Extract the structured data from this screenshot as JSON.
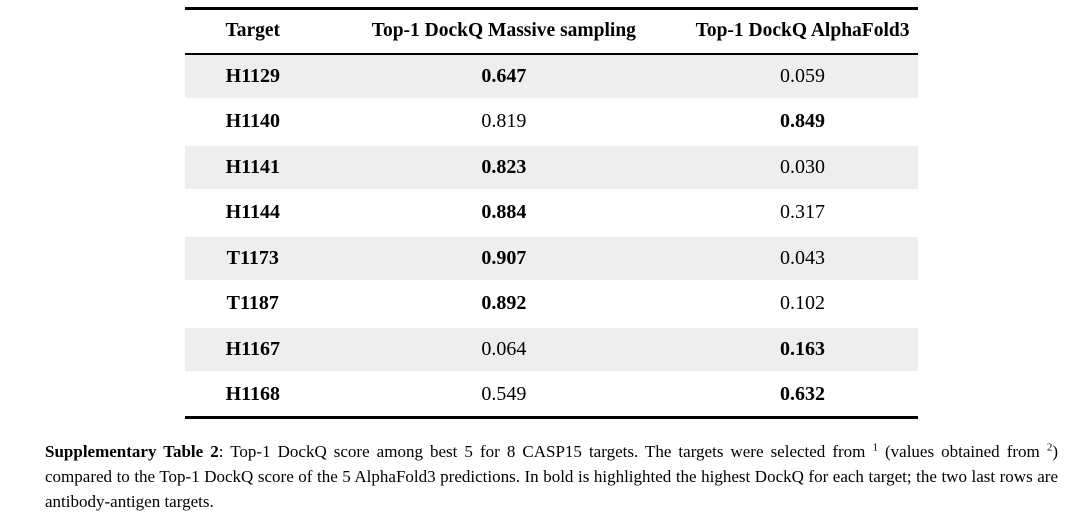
{
  "table": {
    "columns": [
      {
        "label": "Target"
      },
      {
        "label": "Top-1 DockQ Massive sampling"
      },
      {
        "label": "Top-1 DockQ AlphaFold3"
      }
    ],
    "rows": [
      {
        "target": "H1129",
        "massive": "0.647",
        "af3": "0.059",
        "best": "massive"
      },
      {
        "target": "H1140",
        "massive": "0.819",
        "af3": "0.849",
        "best": "af3"
      },
      {
        "target": "H1141",
        "massive": "0.823",
        "af3": "0.030",
        "best": "massive"
      },
      {
        "target": "H1144",
        "massive": "0.884",
        "af3": "0.317",
        "best": "massive"
      },
      {
        "target": "T1173",
        "massive": "0.907",
        "af3": "0.043",
        "best": "massive"
      },
      {
        "target": "T1187",
        "massive": "0.892",
        "af3": "0.102",
        "best": "massive"
      },
      {
        "target": "H1167",
        "massive": "0.064",
        "af3": "0.163",
        "best": "af3"
      },
      {
        "target": "H1168",
        "massive": "0.549",
        "af3": "0.632",
        "best": "af3"
      }
    ],
    "stripe_color": "#eeeeee",
    "border_color": "#000000"
  },
  "caption": {
    "label": "Supplementary Table 2",
    "segment_1": ": Top-1 DockQ score among best 5 for 8 CASP15 targets. The targets were selected from ",
    "ref_1": "1",
    "segment_2": " (values obtained from ",
    "ref_2": "2",
    "segment_3": ") compared to the Top-1 DockQ score of the 5 AlphaFold3 predictions. In bold is highlighted the highest DockQ for each target; the two last rows are antibody-antigen targets."
  }
}
